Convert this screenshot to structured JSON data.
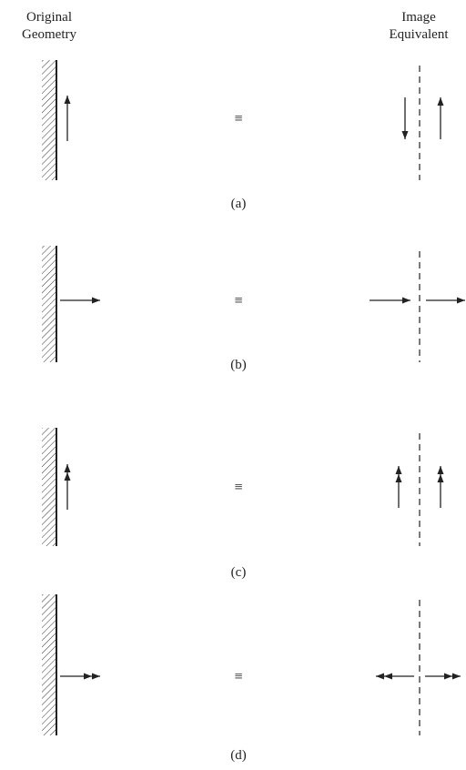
{
  "header": {
    "left": [
      "Original",
      "Geometry"
    ],
    "right": [
      "Image",
      "Equivalent"
    ]
  },
  "equivalence_symbol": "≡",
  "panels": [
    {
      "id": "a",
      "caption": "(a)",
      "source": "vertical",
      "arrow": "single",
      "image_arrows": "opposite"
    },
    {
      "id": "b",
      "caption": "(b)",
      "source": "horizontal",
      "arrow": "single",
      "image_arrows": "same"
    },
    {
      "id": "c",
      "caption": "(c)",
      "source": "vertical",
      "arrow": "double",
      "image_arrows": "same"
    },
    {
      "id": "d",
      "caption": "(d)",
      "source": "horizontal",
      "arrow": "double",
      "image_arrows": "opposite"
    }
  ],
  "colors": {
    "ink": "#222222"
  }
}
